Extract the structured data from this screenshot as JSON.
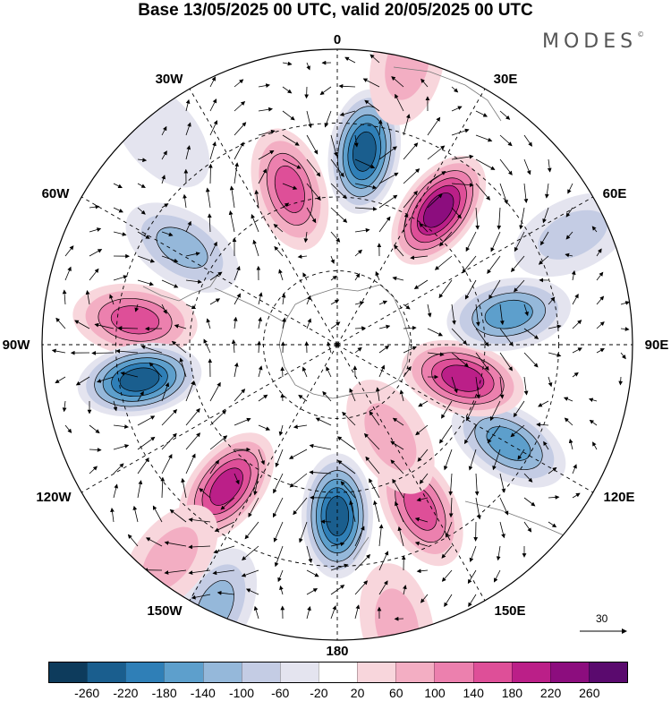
{
  "title": "Base 13/05/2025 00 UTC, valid 20/05/2025 00 UTC",
  "brand": {
    "name": "MODES",
    "mark": "©"
  },
  "longitude_labels": {
    "lon_0": "0",
    "lon_30e": "30E",
    "lon_60e": "60E",
    "lon_90e": "90E",
    "lon_120e": "120E",
    "lon_150e": "150E",
    "lon_180": "180",
    "lon_150w": "150W",
    "lon_120w": "120W",
    "lon_90w": "90W",
    "lon_60w": "60W",
    "lon_30w": "30W"
  },
  "reference_vector": {
    "label": "30"
  },
  "colorbar": {
    "colors": [
      "#0d3b5c",
      "#1a5e8e",
      "#2f7fb7",
      "#5d9fcc",
      "#95b8da",
      "#c4cce4",
      "#e4e4ef",
      "#ffffff",
      "#f8d6dc",
      "#f3aec3",
      "#ec80ae",
      "#de4f98",
      "#bb1f88",
      "#8c0d7e",
      "#5a0a6e"
    ],
    "labels": [
      "-260",
      "-220",
      "-180",
      "-140",
      "-100",
      "-60",
      "-20",
      "20",
      "60",
      "100",
      "140",
      "180",
      "220",
      "260"
    ]
  },
  "anomaly_centers": [
    {
      "bearing": 8,
      "dist": 0.66,
      "value": -250
    },
    {
      "bearing": 37,
      "dist": 0.57,
      "value": 245
    },
    {
      "bearing": 343,
      "dist": 0.55,
      "value": 160
    },
    {
      "bearing": 302,
      "dist": 0.62,
      "value": -110
    },
    {
      "bearing": 277,
      "dist": 0.69,
      "value": 170
    },
    {
      "bearing": 260,
      "dist": 0.68,
      "value": -220
    },
    {
      "bearing": 218,
      "dist": 0.61,
      "value": 200
    },
    {
      "bearing": 180,
      "dist": 0.58,
      "value": -250
    },
    {
      "bearing": 153,
      "dist": 0.62,
      "value": 140
    },
    {
      "bearing": 120,
      "dist": 0.67,
      "value": -150
    },
    {
      "bearing": 105,
      "dist": 0.44,
      "value": 200
    },
    {
      "bearing": 80,
      "dist": 0.59,
      "value": -170
    },
    {
      "bearing": 205,
      "dist": 0.98,
      "value": -120
    },
    {
      "bearing": 168,
      "dist": 0.97,
      "value": 90
    },
    {
      "bearing": 14,
      "dist": 0.98,
      "value": 60
    },
    {
      "bearing": 150,
      "dist": 0.36,
      "value": 80
    },
    {
      "bearing": 218,
      "dist": 0.92,
      "value": 60
    },
    {
      "bearing": 65,
      "dist": 0.88,
      "value": -60
    },
    {
      "bearing": 320,
      "dist": 0.93,
      "value": -50
    }
  ]
}
